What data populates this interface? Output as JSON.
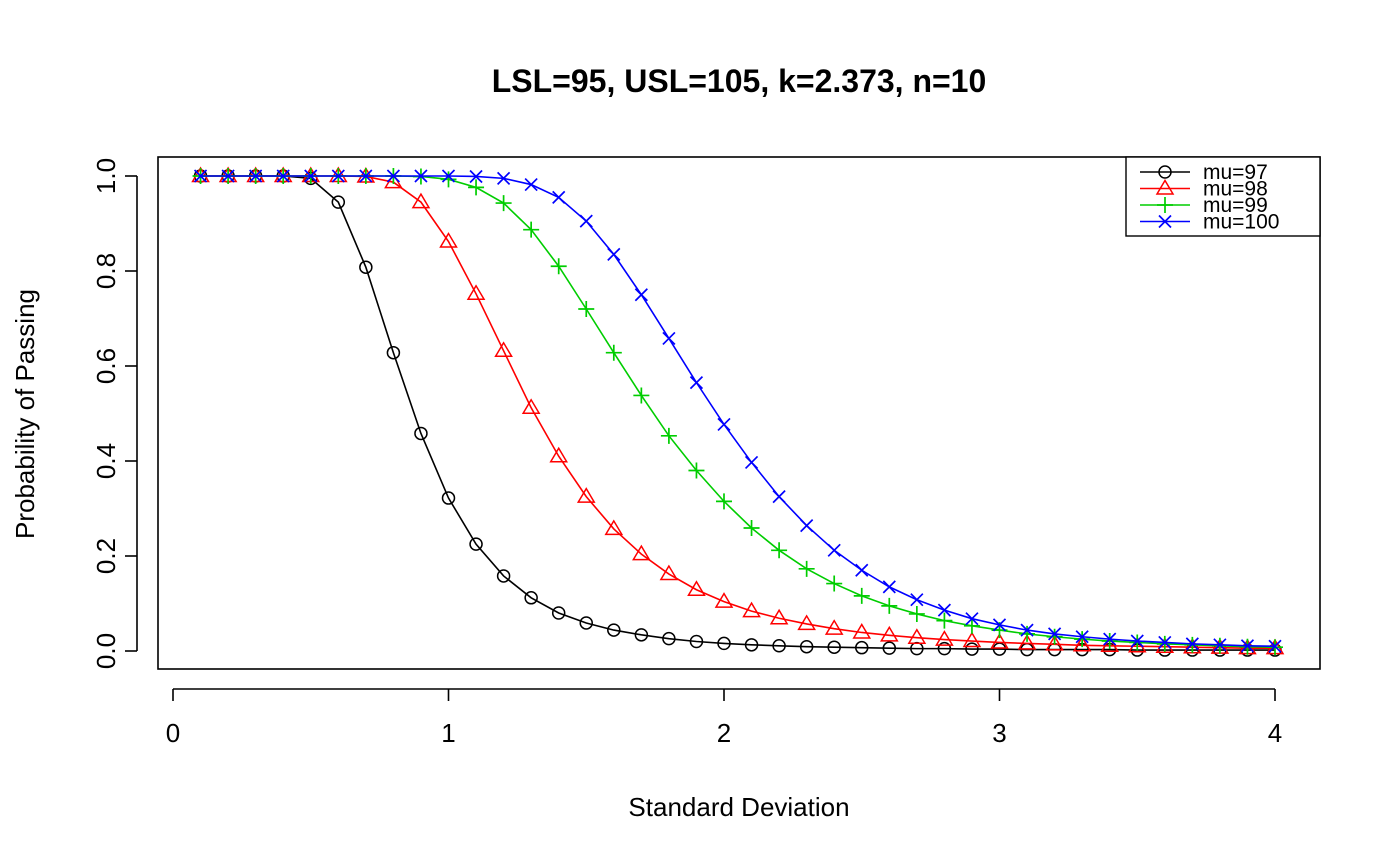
{
  "chart_data": {
    "type": "line",
    "title": "LSL=95, USL=105, k=2.373, n=10",
    "xlabel": "Standard Deviation",
    "ylabel": "Probability of Passing",
    "xlim": [
      0,
      4
    ],
    "ylim": [
      0,
      1
    ],
    "x_ticks": [
      "0",
      "1",
      "2",
      "3",
      "4"
    ],
    "y_ticks": [
      "0.0",
      "0.2",
      "0.4",
      "0.6",
      "0.8",
      "1.0"
    ],
    "grid": false,
    "legend_position": "top-right",
    "x": [
      0.1,
      0.2,
      0.3,
      0.4,
      0.5,
      0.6,
      0.7,
      0.8,
      0.9,
      1.0,
      1.1,
      1.2,
      1.3,
      1.4,
      1.5,
      1.6,
      1.7,
      1.8,
      1.9,
      2.0,
      2.1,
      2.2,
      2.3,
      2.4,
      2.5,
      2.6,
      2.7,
      2.8,
      2.9,
      3.0,
      3.1,
      3.2,
      3.3,
      3.4,
      3.5,
      3.6,
      3.7,
      3.8,
      3.9,
      4.0
    ],
    "series": [
      {
        "name": "mu=97",
        "color": "#000000",
        "marker": "circle",
        "values": [
          1.0,
          1.0,
          1.0,
          1.0,
          0.995,
          0.945,
          0.808,
          0.628,
          0.458,
          0.322,
          0.225,
          0.158,
          0.112,
          0.08,
          0.059,
          0.044,
          0.034,
          0.026,
          0.02,
          0.016,
          0.013,
          0.011,
          0.009,
          0.008,
          0.007,
          0.006,
          0.005,
          0.005,
          0.004,
          0.004,
          0.003,
          0.003,
          0.003,
          0.003,
          0.002,
          0.002,
          0.002,
          0.002,
          0.002,
          0.002
        ]
      },
      {
        "name": "mu=98",
        "color": "#ff0000",
        "marker": "triangle",
        "values": [
          1.0,
          1.0,
          1.0,
          1.0,
          1.0,
          1.0,
          0.999,
          0.987,
          0.945,
          0.862,
          0.752,
          0.632,
          0.512,
          0.41,
          0.325,
          0.257,
          0.204,
          0.162,
          0.129,
          0.104,
          0.084,
          0.069,
          0.057,
          0.047,
          0.039,
          0.033,
          0.028,
          0.024,
          0.021,
          0.018,
          0.016,
          0.014,
          0.012,
          0.011,
          0.01,
          0.009,
          0.008,
          0.007,
          0.006,
          0.006
        ]
      },
      {
        "name": "mu=99",
        "color": "#00cd00",
        "marker": "plus",
        "values": [
          1.0,
          1.0,
          1.0,
          1.0,
          1.0,
          1.0,
          1.0,
          1.0,
          0.999,
          0.993,
          0.976,
          0.943,
          0.887,
          0.81,
          0.72,
          0.628,
          0.538,
          0.453,
          0.38,
          0.315,
          0.259,
          0.212,
          0.173,
          0.142,
          0.116,
          0.095,
          0.078,
          0.064,
          0.053,
          0.044,
          0.036,
          0.03,
          0.025,
          0.021,
          0.018,
          0.015,
          0.013,
          0.011,
          0.009,
          0.008
        ]
      },
      {
        "name": "mu=100",
        "color": "#0000ff",
        "marker": "x",
        "values": [
          1.0,
          1.0,
          1.0,
          1.0,
          1.0,
          1.0,
          1.0,
          1.0,
          1.0,
          1.0,
          0.999,
          0.995,
          0.982,
          0.955,
          0.905,
          0.835,
          0.75,
          0.658,
          0.565,
          0.477,
          0.397,
          0.325,
          0.264,
          0.212,
          0.17,
          0.135,
          0.108,
          0.086,
          0.068,
          0.055,
          0.044,
          0.036,
          0.03,
          0.025,
          0.021,
          0.018,
          0.015,
          0.013,
          0.011,
          0.01
        ]
      }
    ]
  }
}
